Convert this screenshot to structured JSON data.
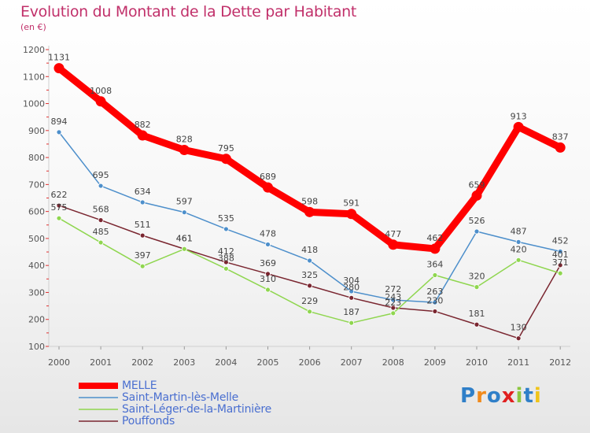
{
  "title": "Evolution du Montant de la Dette par Habitant",
  "subtitle": "(en €)",
  "logo_text": "Proxiti",
  "chart_data": {
    "type": "line",
    "title": "Evolution du Montant de la Dette par Habitant",
    "subtitle": "(en €)",
    "x": [
      "2000",
      "2001",
      "2002",
      "2003",
      "2004",
      "2005",
      "2006",
      "2007",
      "2008",
      "2009",
      "2010",
      "2011",
      "2012"
    ],
    "ylim": [
      100,
      1200
    ],
    "yticks": [
      100,
      200,
      300,
      400,
      500,
      600,
      700,
      800,
      900,
      1000,
      1100,
      1200
    ],
    "grid": false,
    "legend": "bottom-left",
    "series": [
      {
        "name": "MELLE",
        "color": "#ff0000",
        "values": [
          1131,
          1008,
          882,
          828,
          795,
          689,
          598,
          591,
          477,
          462,
          659,
          913,
          837
        ]
      },
      {
        "name": "Saint-Martin-lès-Melle",
        "color": "#4d8fcb",
        "values": [
          894,
          695,
          634,
          597,
          535,
          478,
          418,
          304,
          272,
          263,
          526,
          487,
          452
        ]
      },
      {
        "name": "Saint-Léger-de-la-Martinière",
        "color": "#8fd64f",
        "values": [
          575,
          485,
          397,
          461,
          388,
          310,
          229,
          187,
          223,
          364,
          320,
          420,
          371
        ]
      },
      {
        "name": "Pouffonds",
        "color": "#7a2630",
        "values": [
          622,
          568,
          511,
          461,
          412,
          369,
          325,
          280,
          243,
          230,
          181,
          130,
          401
        ]
      }
    ]
  }
}
